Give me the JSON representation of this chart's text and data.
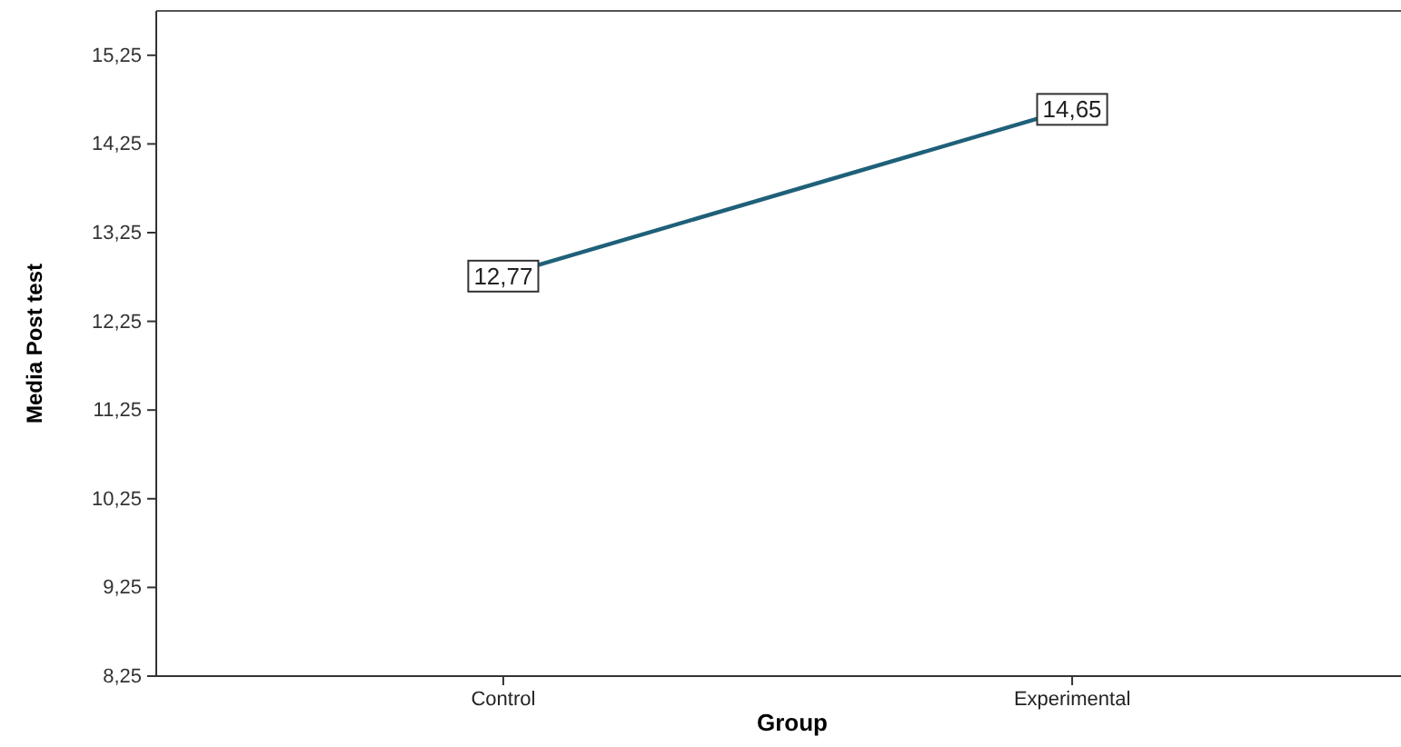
{
  "chart_data": {
    "type": "line",
    "xlabel": "Group",
    "ylabel": "Media Post test",
    "categories": [
      "Control",
      "Experimental"
    ],
    "series": [
      {
        "color": "#1f6079",
        "values": [
          12.77,
          14.65
        ],
        "value_labels": [
          "12,77",
          "14,65"
        ]
      }
    ],
    "ylim": [
      8.25,
      15.75
    ],
    "yticks": [
      {
        "value": 8.25,
        "label": "8,25"
      },
      {
        "value": 9.25,
        "label": "9,25"
      },
      {
        "value": 10.25,
        "label": "10,25"
      },
      {
        "value": 11.25,
        "label": "11,25"
      },
      {
        "value": 12.25,
        "label": "12,25"
      },
      {
        "value": 13.25,
        "label": "13,25"
      },
      {
        "value": 14.25,
        "label": "14,25"
      },
      {
        "value": 15.25,
        "label": "15,25"
      }
    ],
    "grid": false,
    "marker": "square",
    "line_style": "solid"
  }
}
